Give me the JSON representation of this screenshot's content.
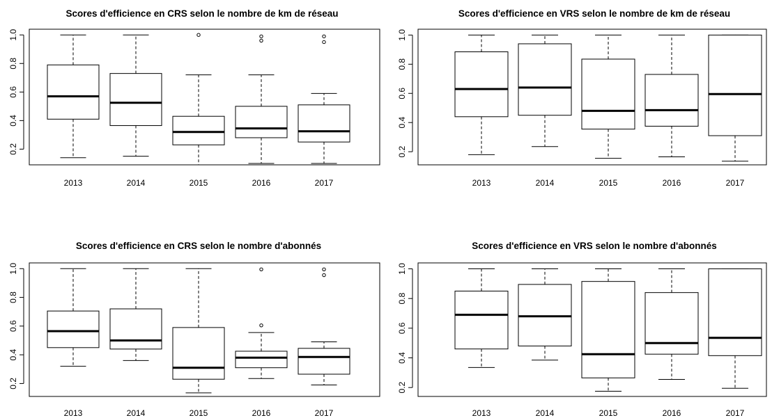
{
  "chart_data": [
    {
      "type": "boxplot",
      "title": "Scores d'efficience en CRS selon le nombre de km de réseau",
      "categories": [
        "2013",
        "2014",
        "2015",
        "2016",
        "2017"
      ],
      "y_ticks": [
        "0.2",
        "0.4",
        "0.6",
        "0.8",
        "1.0"
      ],
      "ylim": [
        0.09,
        1.04
      ],
      "boxes": [
        {
          "min": 0.14,
          "q1": 0.41,
          "median": 0.57,
          "q3": 0.79,
          "max": 1.0,
          "outliers": []
        },
        {
          "min": 0.15,
          "q1": 0.365,
          "median": 0.525,
          "q3": 0.73,
          "max": 1.0,
          "outliers": []
        },
        {
          "min": 0.09,
          "q1": 0.23,
          "median": 0.32,
          "q3": 0.43,
          "max": 0.72,
          "outliers": [
            1.0
          ]
        },
        {
          "min": 0.1,
          "q1": 0.28,
          "median": 0.345,
          "q3": 0.5,
          "max": 0.72,
          "outliers": [
            0.96,
            0.99
          ]
        },
        {
          "min": 0.1,
          "q1": 0.25,
          "median": 0.325,
          "q3": 0.51,
          "max": 0.59,
          "outliers": [
            0.95,
            0.99
          ]
        }
      ]
    },
    {
      "type": "boxplot",
      "title": "Scores d'efficience en VRS selon le nombre de km de réseau",
      "categories": [
        "2013",
        "2014",
        "2015",
        "2016",
        "2017"
      ],
      "y_ticks": [
        "0.2",
        "0.4",
        "0.6",
        "0.8",
        "1.0"
      ],
      "ylim": [
        0.11,
        1.04
      ],
      "boxes": [
        {
          "min": 0.18,
          "q1": 0.44,
          "median": 0.63,
          "q3": 0.885,
          "max": 1.0,
          "outliers": []
        },
        {
          "min": 0.235,
          "q1": 0.45,
          "median": 0.64,
          "q3": 0.94,
          "max": 1.0,
          "outliers": []
        },
        {
          "min": 0.155,
          "q1": 0.355,
          "median": 0.48,
          "q3": 0.835,
          "max": 1.0,
          "outliers": []
        },
        {
          "min": 0.165,
          "q1": 0.375,
          "median": 0.485,
          "q3": 0.73,
          "max": 1.0,
          "outliers": []
        },
        {
          "min": 0.135,
          "q1": 0.31,
          "median": 0.595,
          "q3": 1.0,
          "max": 1.0,
          "outliers": []
        }
      ]
    },
    {
      "type": "boxplot",
      "title": "Scores d'efficience en CRS selon le nombre d'abonnés",
      "categories": [
        "2013",
        "2014",
        "2015",
        "2016",
        "2017"
      ],
      "y_ticks": [
        "0.2",
        "0.4",
        "0.6",
        "0.8",
        "1.0"
      ],
      "ylim": [
        0.11,
        1.04
      ],
      "boxes": [
        {
          "min": 0.32,
          "q1": 0.45,
          "median": 0.565,
          "q3": 0.705,
          "max": 1.0,
          "outliers": []
        },
        {
          "min": 0.36,
          "q1": 0.44,
          "median": 0.5,
          "q3": 0.72,
          "max": 1.0,
          "outliers": []
        },
        {
          "min": 0.135,
          "q1": 0.23,
          "median": 0.31,
          "q3": 0.59,
          "max": 1.0,
          "outliers": []
        },
        {
          "min": 0.235,
          "q1": 0.31,
          "median": 0.38,
          "q3": 0.425,
          "max": 0.555,
          "outliers": [
            0.605,
            0.995
          ]
        },
        {
          "min": 0.19,
          "q1": 0.265,
          "median": 0.385,
          "q3": 0.445,
          "max": 0.49,
          "outliers": [
            0.955,
            0.995
          ]
        }
      ]
    },
    {
      "type": "boxplot",
      "title": "Scores d'efficience en VRS selon le nombre d'abonnés",
      "categories": [
        "2013",
        "2014",
        "2015",
        "2016",
        "2017"
      ],
      "y_ticks": [
        "0.2",
        "0.4",
        "0.6",
        "0.8",
        "1.0"
      ],
      "ylim": [
        0.14,
        1.04
      ],
      "boxes": [
        {
          "min": 0.335,
          "q1": 0.46,
          "median": 0.69,
          "q3": 0.85,
          "max": 1.0,
          "outliers": []
        },
        {
          "min": 0.385,
          "q1": 0.48,
          "median": 0.68,
          "q3": 0.895,
          "max": 1.0,
          "outliers": []
        },
        {
          "min": 0.175,
          "q1": 0.265,
          "median": 0.425,
          "q3": 0.915,
          "max": 1.0,
          "outliers": []
        },
        {
          "min": 0.255,
          "q1": 0.425,
          "median": 0.5,
          "q3": 0.84,
          "max": 1.0,
          "outliers": []
        },
        {
          "min": 0.195,
          "q1": 0.415,
          "median": 0.535,
          "q3": 1.0,
          "max": 1.0,
          "outliers": []
        }
      ]
    }
  ]
}
